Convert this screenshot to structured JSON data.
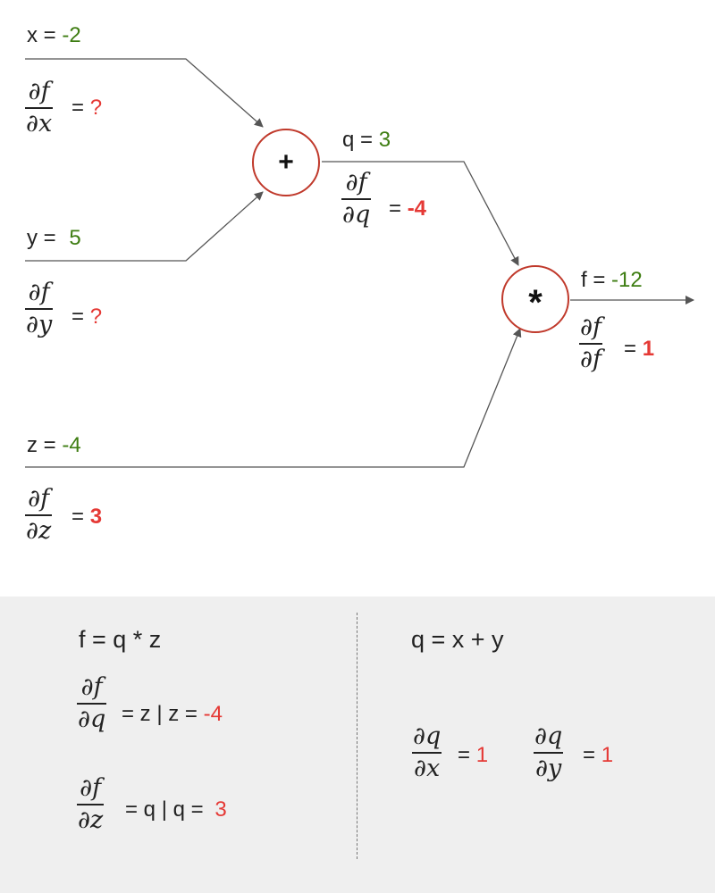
{
  "graph": {
    "x": {
      "name": "x",
      "eq": "=",
      "value": "-2"
    },
    "dfdx": {
      "num": "∂f",
      "den": "∂x",
      "eq": "=",
      "value": "?"
    },
    "y": {
      "name": "y",
      "eq": "=",
      "value": "5"
    },
    "dfdy": {
      "num": "∂f",
      "den": "∂y",
      "eq": "=",
      "value": "?"
    },
    "z": {
      "name": "z",
      "eq": "=",
      "value": "-4"
    },
    "dfdz": {
      "num": "∂f",
      "den": "∂z",
      "eq": "=",
      "value": "3"
    },
    "q": {
      "name": "q",
      "eq": "=",
      "value": "3"
    },
    "dfdq": {
      "num": "∂f",
      "den": "∂q",
      "eq": "=",
      "value": "-4"
    },
    "f": {
      "name": "f",
      "eq": "=",
      "value": "-12"
    },
    "dfdf": {
      "num": "∂f",
      "den": "∂f",
      "eq": "=",
      "value": "1"
    },
    "add_node": {
      "symbol": "+"
    },
    "mul_node": {
      "symbol": "*"
    }
  },
  "panel": {
    "left": {
      "formula": "f = q * z",
      "d1": {
        "num": "∂f",
        "den": "∂q",
        "rhs": "= z |  z =",
        "value": "-4"
      },
      "d2": {
        "num": "∂f",
        "den": "∂z",
        "rhs": "= q | q =",
        "value": "3"
      }
    },
    "right": {
      "formula": "q = x + y",
      "d1": {
        "num": "∂q",
        "den": "∂x",
        "eq": "=",
        "value": "1"
      },
      "d2": {
        "num": "∂q",
        "den": "∂y",
        "eq": "=",
        "value": "1"
      }
    }
  },
  "colors": {
    "forward_value": "#3e7d12",
    "gradient_value": "#e53935",
    "node_border": "#c0392b",
    "wire": "#555555",
    "panel_bg": "#efefef"
  }
}
